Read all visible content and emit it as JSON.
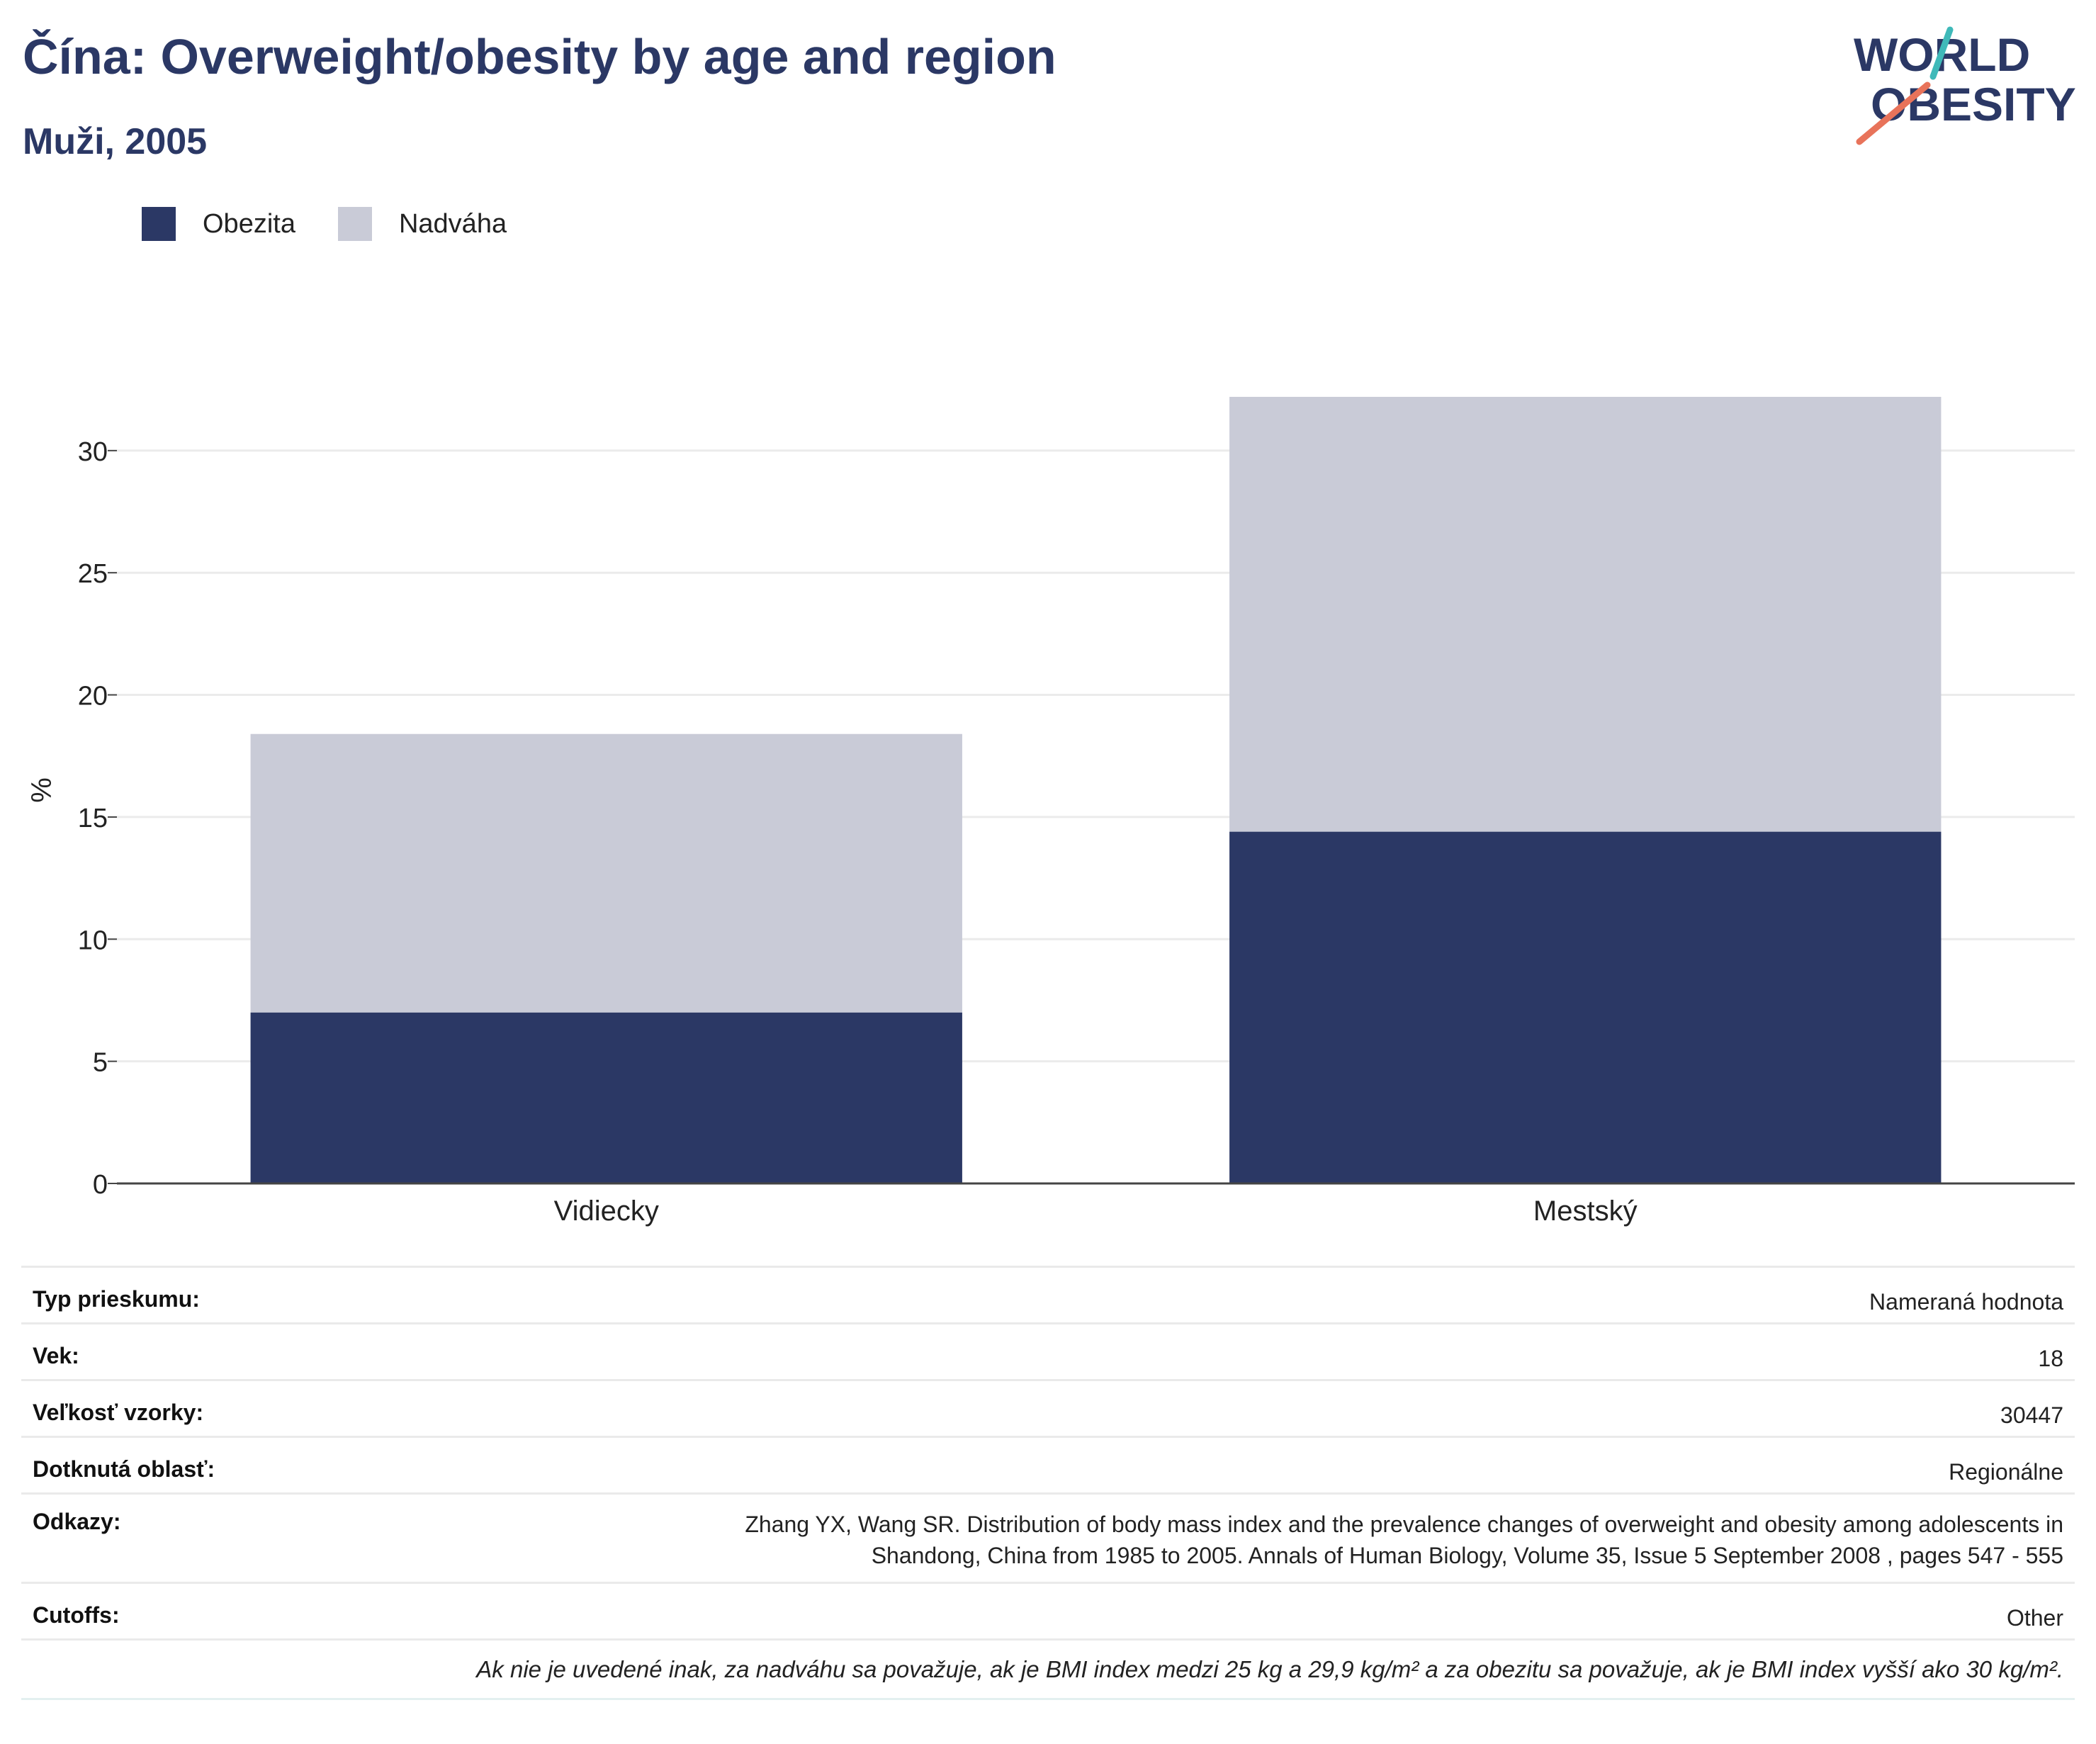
{
  "title": "Čína: Overweight/obesity by age and region",
  "subtitle": "Muži, 2005",
  "logo": {
    "line1": "WORLD",
    "line2": "OBESITY",
    "accent_teal": "#3fb9b9",
    "accent_coral": "#e8735a"
  },
  "legend": [
    {
      "label": "Obezita",
      "color": "#2b3865"
    },
    {
      "label": "Nadváha",
      "color": "#c9cbd7"
    }
  ],
  "chart_data": {
    "type": "bar",
    "stacked": true,
    "categories": [
      "Vidiecky",
      "Mestský"
    ],
    "series": [
      {
        "name": "Obezita",
        "color": "#2b3865",
        "values": [
          7.0,
          14.4
        ]
      },
      {
        "name": "Nadváha",
        "color": "#c9cbd7",
        "values": [
          11.4,
          17.8
        ]
      }
    ],
    "ylabel": "%",
    "xlabel": "",
    "ylim": [
      0,
      32.2
    ],
    "yticks": [
      0,
      5,
      10,
      15,
      20,
      25,
      30
    ],
    "grid": true,
    "legend_position": "top-left"
  },
  "info": {
    "rows": [
      {
        "key": "Typ prieskumu:",
        "value": "Nameraná hodnota"
      },
      {
        "key": "Vek:",
        "value": "18"
      },
      {
        "key": "Veľkosť vzorky:",
        "value": "30447"
      },
      {
        "key": "Dotknutá oblasť:",
        "value": "Regionálne"
      },
      {
        "key": "Odkazy:",
        "value_line1": "Zhang YX, Wang SR. Distribution of body mass index and the prevalence changes of overweight and obesity among adolescents in",
        "value_line2": "Shandong, China from 1985 to 2005. Annals of Human Biology, Volume 35, Issue 5 September 2008 , pages 547 - 555"
      },
      {
        "key": "Cutoffs:",
        "value": "Other"
      }
    ],
    "note": "Ak nie je uvedené inak, za nadváhu sa považuje, ak je BMI index medzi 25 kg a 29,9 kg/m² a za obezitu sa považuje, ak je BMI index vyšší ako 30 kg/m²."
  }
}
